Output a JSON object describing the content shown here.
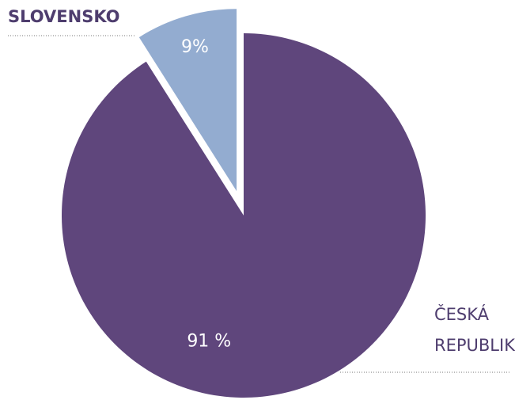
{
  "chart_data": {
    "type": "pie",
    "categories": [
      "SLOVENSKO",
      "ČESKÁ REPUBLIKA"
    ],
    "values": [
      9,
      91
    ],
    "value_labels": [
      "9%",
      "91 %"
    ],
    "colors": [
      "#93acd0",
      "#5f467c"
    ],
    "explode": [
      true,
      false
    ]
  }
}
